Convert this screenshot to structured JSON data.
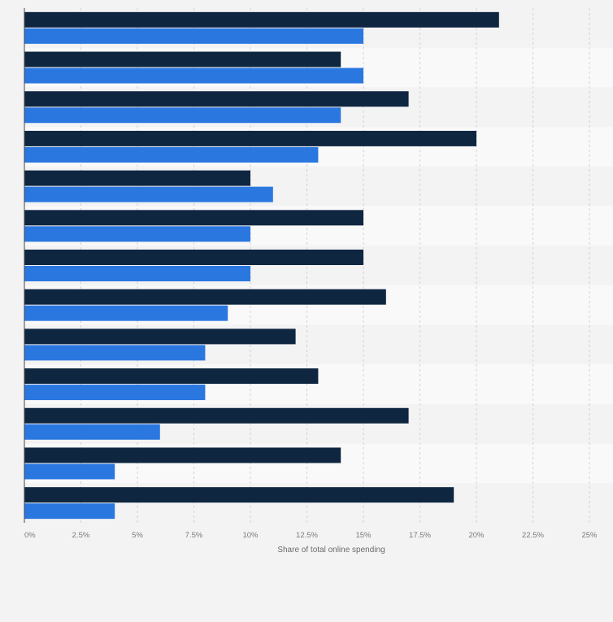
{
  "chart_data": {
    "type": "bar",
    "orientation": "horizontal",
    "title": "",
    "xlabel": "Share of total online spending",
    "ylabel": "",
    "xlim": [
      0,
      25
    ],
    "ticks": [
      0,
      2.5,
      5,
      7.5,
      10,
      12.5,
      15,
      17.5,
      20,
      22.5,
      25
    ],
    "tick_labels": [
      "0%",
      "2.5%",
      "5%",
      "7.5%",
      "10%",
      "12.5%",
      "15%",
      "17.5%",
      "20%",
      "22.5%",
      "25%"
    ],
    "categories": [
      "",
      "",
      "",
      "",
      "",
      "",
      "",
      "",
      "",
      "",
      "",
      "",
      ""
    ],
    "series": [
      {
        "name": "",
        "color": "#0f2640",
        "values": [
          21,
          14,
          17,
          20,
          10,
          15,
          15,
          16,
          12,
          13,
          17,
          14,
          19
        ]
      },
      {
        "name": "",
        "color": "#2a77e0",
        "values": [
          15,
          15,
          14,
          13,
          11,
          10,
          10,
          9,
          8,
          8,
          6,
          4,
          4
        ]
      }
    ],
    "grid": true,
    "legend": "none"
  }
}
